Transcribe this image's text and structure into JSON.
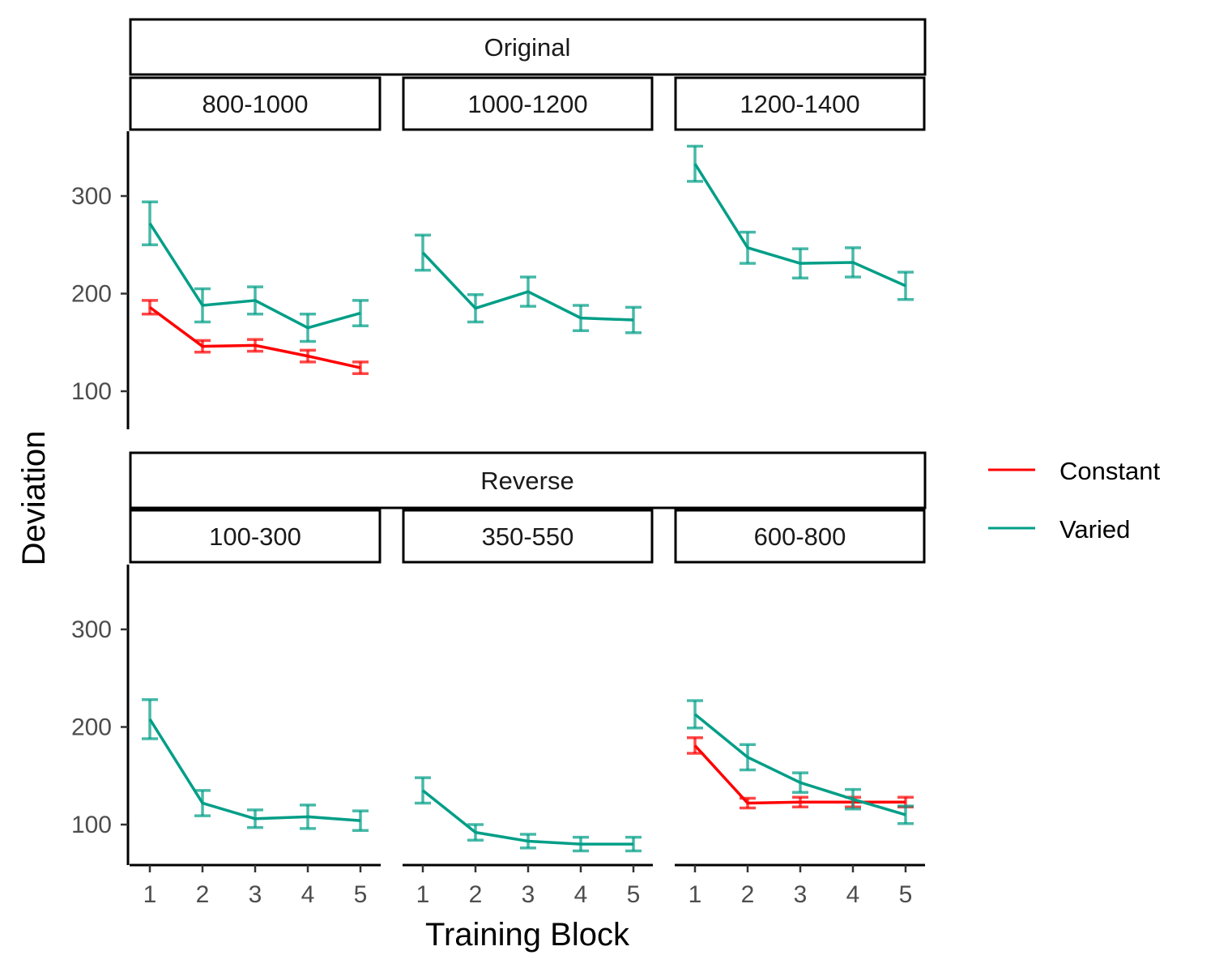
{
  "chart_data": {
    "type": "line",
    "xlabel": "Training Block",
    "ylabel": "Deviation",
    "ylim": [
      60,
      365
    ],
    "y_ticks": [
      100,
      200,
      300
    ],
    "x_ticks": [
      1,
      2,
      3,
      4,
      5
    ],
    "grid": false,
    "legend_position": "right",
    "series_styles": [
      {
        "name": "Constant",
        "color": "#ff0000"
      },
      {
        "name": "Varied",
        "color": "#009e87"
      }
    ],
    "groups": [
      {
        "label": "Original",
        "panels": [
          {
            "label": "800-1000",
            "series": [
              {
                "name": "Constant",
                "x": [
                  1,
                  2,
                  3,
                  4,
                  5
                ],
                "y": [
                  186,
                  146,
                  147,
                  136,
                  124
                ],
                "err": [
                  7,
                  6,
                  6,
                  6,
                  6
                ]
              },
              {
                "name": "Varied",
                "x": [
                  1,
                  2,
                  3,
                  4,
                  5
                ],
                "y": [
                  272,
                  188,
                  193,
                  165,
                  180
                ],
                "err": [
                  22,
                  17,
                  14,
                  14,
                  13
                ]
              }
            ]
          },
          {
            "label": "1000-1200",
            "series": [
              {
                "name": "Varied",
                "x": [
                  1,
                  2,
                  3,
                  4,
                  5
                ],
                "y": [
                  242,
                  185,
                  202,
                  175,
                  173
                ],
                "err": [
                  18,
                  14,
                  15,
                  13,
                  13
                ]
              }
            ]
          },
          {
            "label": "1200-1400",
            "series": [
              {
                "name": "Varied",
                "x": [
                  1,
                  2,
                  3,
                  4,
                  5
                ],
                "y": [
                  333,
                  247,
                  231,
                  232,
                  208
                ],
                "err": [
                  18,
                  16,
                  15,
                  15,
                  14
                ]
              }
            ]
          }
        ]
      },
      {
        "label": "Reverse",
        "panels": [
          {
            "label": "100-300",
            "series": [
              {
                "name": "Varied",
                "x": [
                  1,
                  2,
                  3,
                  4,
                  5
                ],
                "y": [
                  208,
                  122,
                  106,
                  108,
                  104
                ],
                "err": [
                  20,
                  13,
                  9,
                  12,
                  10
                ]
              }
            ]
          },
          {
            "label": "350-550",
            "series": [
              {
                "name": "Varied",
                "x": [
                  1,
                  2,
                  3,
                  4,
                  5
                ],
                "y": [
                  135,
                  92,
                  83,
                  80,
                  80
                ],
                "err": [
                  13,
                  8,
                  7,
                  7,
                  7
                ]
              }
            ]
          },
          {
            "label": "600-800",
            "series": [
              {
                "name": "Constant",
                "x": [
                  1,
                  2,
                  3,
                  4,
                  5
                ],
                "y": [
                  181,
                  122,
                  123,
                  123,
                  123
                ],
                "err": [
                  8,
                  5,
                  5,
                  5,
                  5
                ]
              },
              {
                "name": "Varied",
                "x": [
                  1,
                  2,
                  3,
                  4,
                  5
                ],
                "y": [
                  213,
                  169,
                  143,
                  126,
                  110
                ],
                "err": [
                  14,
                  13,
                  10,
                  10,
                  9
                ]
              }
            ]
          }
        ]
      }
    ]
  }
}
